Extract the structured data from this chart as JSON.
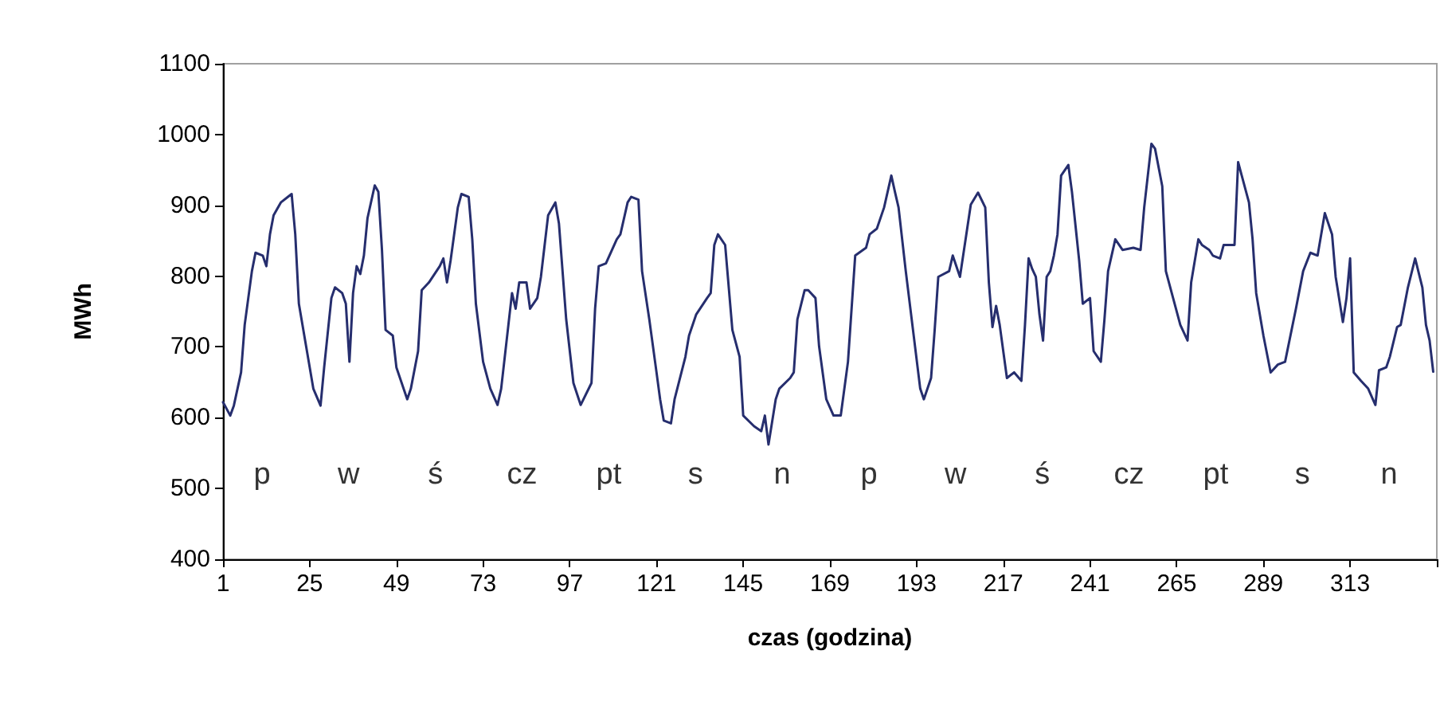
{
  "chart_data": {
    "type": "line",
    "xlabel": "czas (godzina)",
    "ylabel": "MWh",
    "x": [
      1,
      3,
      4,
      6,
      7,
      8,
      9,
      10,
      12,
      13,
      14,
      15,
      17,
      19,
      20,
      21,
      22,
      24,
      26,
      28,
      29,
      31,
      32,
      34,
      35,
      36,
      37,
      38,
      39,
      40,
      41,
      43,
      44,
      45,
      46,
      48,
      49,
      52,
      53,
      55,
      56,
      58,
      61,
      62,
      63,
      64,
      66,
      67,
      69,
      70,
      71,
      73,
      75,
      77,
      78,
      80,
      81,
      82,
      83,
      85,
      86,
      88,
      89,
      91,
      93,
      94,
      96,
      98,
      100,
      103,
      104,
      105,
      107,
      110,
      111,
      113,
      114,
      116,
      117,
      119,
      121,
      122,
      123,
      125,
      126,
      129,
      130,
      132,
      135,
      136,
      137,
      138,
      140,
      142,
      144,
      145,
      148,
      150,
      151,
      152,
      154,
      155,
      158,
      159,
      160,
      162,
      163,
      165,
      166,
      168,
      170,
      172,
      174,
      176,
      179,
      180,
      182,
      184,
      186,
      187,
      188,
      190,
      192,
      194,
      195,
      197,
      198,
      199,
      202,
      203,
      205,
      207,
      208,
      210,
      212,
      213,
      214,
      215,
      216,
      218,
      220,
      222,
      223,
      224,
      225,
      226,
      227,
      228,
      229,
      230,
      231,
      232,
      233,
      235,
      236,
      238,
      239,
      241,
      242,
      244,
      245,
      246,
      248,
      250,
      253,
      255,
      256,
      258,
      259,
      261,
      262,
      264,
      266,
      268,
      269,
      271,
      272,
      274,
      275,
      277,
      278,
      281,
      282,
      283,
      285,
      286,
      287,
      289,
      291,
      293,
      295,
      298,
      300,
      302,
      304,
      306,
      308,
      309,
      311,
      312,
      313,
      314,
      316,
      318,
      320,
      321,
      323,
      324,
      326,
      327,
      329,
      331,
      333,
      334,
      335,
      336
    ],
    "series": [
      {
        "color": "#262e6e",
        "values": [
          622,
          603,
          617,
          664,
          731,
          769,
          807,
          833,
          829,
          814,
          859,
          886,
          904,
          912,
          916,
          859,
          761,
          701,
          641,
          617,
          671,
          769,
          784,
          776,
          761,
          679,
          776,
          814,
          803,
          829,
          882,
          928,
          919,
          837,
          724,
          716,
          671,
          626,
          641,
          694,
          780,
          791,
          814,
          825,
          791,
          822,
          897,
          916,
          912,
          852,
          761,
          679,
          641,
          618,
          641,
          731,
          776,
          754,
          791,
          791,
          754,
          769,
          799,
          886,
          904,
          874,
          739,
          649,
          618,
          649,
          754,
          814,
          818,
          852,
          859,
          904,
          912,
          908,
          807,
          739,
          664,
          626,
          596,
          592,
          626,
          686,
          716,
          746,
          769,
          776,
          844,
          859,
          844,
          724,
          686,
          603,
          588,
          581,
          603,
          562,
          626,
          641,
          656,
          664,
          739,
          780,
          780,
          769,
          701,
          626,
          603,
          603,
          679,
          829,
          840,
          859,
          867,
          897,
          942,
          919,
          897,
          807,
          724,
          641,
          626,
          656,
          724,
          799,
          807,
          829,
          799,
          867,
          901,
          918,
          897,
          791,
          728,
          758,
          731,
          656,
          664,
          652,
          731,
          825,
          810,
          799,
          746,
          709,
          799,
          807,
          829,
          859,
          942,
          957,
          919,
          822,
          761,
          769,
          694,
          679,
          739,
          807,
          852,
          837,
          840,
          837,
          897,
          987,
          980,
          927,
          807,
          769,
          731,
          709,
          791,
          852,
          844,
          837,
          829,
          825,
          844,
          844,
          961,
          942,
          904,
          852,
          776,
          716,
          664,
          675,
          679,
          754,
          807,
          833,
          829,
          889,
          859,
          799,
          735,
          769,
          825,
          664,
          652,
          641,
          618,
          667,
          671,
          686,
          728,
          731,
          784,
          825,
          784,
          731,
          709,
          665
        ]
      }
    ],
    "xlim": [
      1,
      337
    ],
    "xticks": [
      1,
      25,
      49,
      73,
      97,
      121,
      145,
      169,
      193,
      217,
      241,
      265,
      289,
      313,
      {
        "value": 337,
        "label": null
      }
    ],
    "ylim": [
      400,
      1100
    ],
    "yticks": [
      400,
      500,
      600,
      700,
      800,
      900,
      1000,
      1100
    ],
    "grid": false,
    "legend": false,
    "marker": "none",
    "line_style": "solid",
    "annotations": [
      "p",
      "w",
      "ś",
      "cz",
      "pt",
      "s",
      "n",
      "p",
      "w",
      "ś",
      "cz",
      "pt",
      "s",
      "n"
    ]
  }
}
